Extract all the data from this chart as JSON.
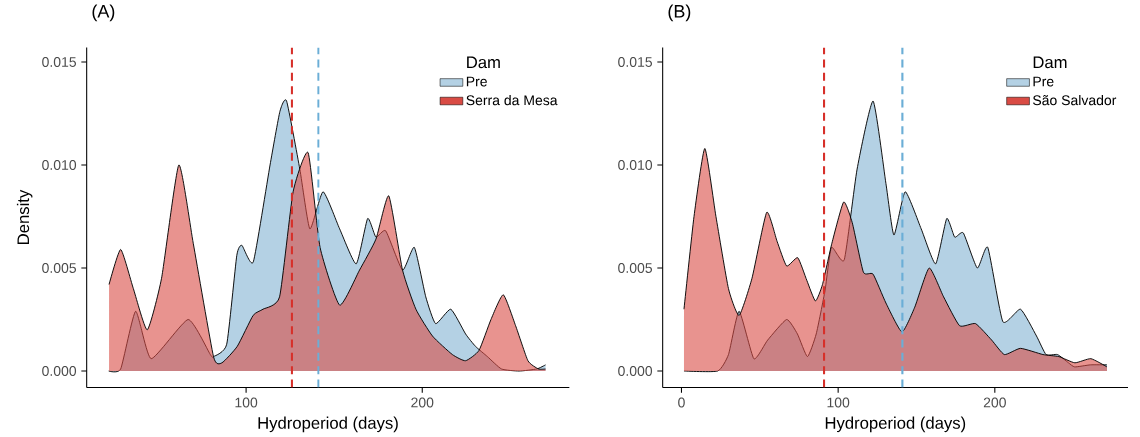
{
  "chart_data": [
    {
      "type": "area",
      "title": "(A)",
      "xlabel": "Hydroperiod (days)",
      "ylabel": "Density",
      "legend_title": "Dam",
      "legend": "top right",
      "xlim": [
        9.5,
        283.5
      ],
      "ylim": [
        -0.0008,
        0.0157
      ],
      "xticks": [
        100,
        200
      ],
      "yticks": [
        {
          "value": 0,
          "label": "0.000"
        },
        {
          "value": 0.005,
          "label": "0.005"
        },
        {
          "value": 0.01,
          "label": "0.010"
        },
        {
          "value": 0.015,
          "label": "0.015"
        }
      ],
      "series": [
        {
          "name": "Pre",
          "color": "#b4d1e4",
          "x": [
            22,
            28.8,
            37.3,
            46.1,
            67.1,
            79.7,
            81.5,
            89,
            94.7,
            97.6,
            104.1,
            113.6,
            119.2,
            123,
            130.5,
            136.2,
            143.7,
            153.1,
            162.5,
            169,
            173.7,
            179.3,
            188.8,
            195.5,
            202,
            207.6,
            216.2,
            224.6,
            230.2,
            237,
            245,
            255,
            265,
            270
          ],
          "values": [
            0,
            0.0001,
            0.0029,
            0.0006,
            0.0025,
            0.0008,
            0.0007,
            0.0013,
            0.0056,
            0.0061,
            0.0053,
            0.01,
            0.0126,
            0.0131,
            0.0098,
            0.0069,
            0.0087,
            0.0069,
            0.0052,
            0.0074,
            0.0065,
            0.0068,
            0.0049,
            0.006,
            0.0036,
            0.0023,
            0.003,
            0.0018,
            0.0012,
            0.0007,
            0.0001,
            0,
            0.0001,
            0.0003
          ]
        },
        {
          "name": "Serra da Mesa",
          "color": "#e8938f",
          "x": [
            22.2,
            28.8,
            36,
            43.9,
            52,
            61.8,
            70,
            81.5,
            86.3,
            95,
            104,
            109.6,
            119,
            126.7,
            135.2,
            142,
            153.1,
            164.4,
            173.7,
            181,
            188.8,
            196.4,
            205.8,
            217.1,
            224.6,
            232.2,
            239,
            246,
            253,
            260,
            266,
            270
          ],
          "values": [
            0.0042,
            0.0059,
            0.004,
            0.002,
            0.0045,
            0.01,
            0.0062,
            0.0007,
            0.0004,
            0.0012,
            0.0027,
            0.003,
            0.0036,
            0.0087,
            0.0106,
            0.006,
            0.0032,
            0.0049,
            0.0064,
            0.0085,
            0.0049,
            0.003,
            0.0017,
            0.0008,
            0.0005,
            0.001,
            0.0025,
            0.0037,
            0.0022,
            0.0005,
            0.0001,
            0.0001
          ]
        }
      ],
      "ref_lines": [
        {
          "axis": "x",
          "value": 126,
          "color": "#d7302a",
          "line_style": "dashed"
        },
        {
          "axis": "x",
          "value": 141,
          "color": "#6baed6",
          "line_style": "dashed"
        }
      ]
    },
    {
      "type": "area",
      "title": "(B)",
      "xlabel": "Hydroperiod (days)",
      "legend_title": "Dam",
      "legend": "top right",
      "xlim": [
        -12,
        285
      ],
      "ylim": [
        -0.0008,
        0.0157
      ],
      "xticks": [
        0,
        100,
        200
      ],
      "yticks": [
        {
          "value": 0,
          "label": "0.000"
        },
        {
          "value": 0.005,
          "label": "0.005"
        },
        {
          "value": 0.01,
          "label": "0.010"
        },
        {
          "value": 0.015,
          "label": "0.015"
        }
      ],
      "series": [
        {
          "name": "Pre",
          "color": "#b4d1e4",
          "x": [
            1.6,
            23.1,
            30,
            36.8,
            46.2,
            55,
            67.1,
            74,
            80.4,
            86,
            91.6,
            95.7,
            103.9,
            112.1,
            122.3,
            130.5,
            135.6,
            142.8,
            153,
            162.2,
            169.3,
            174.4,
            179.9,
            188.8,
            195.5,
            205.1,
            216.4,
            226.6,
            232.7,
            240,
            247,
            251,
            261,
            271.6
          ],
          "values": [
            0,
            0,
            0.0008,
            0.0029,
            0.0006,
            0.0015,
            0.0025,
            0.0018,
            0.0007,
            0.0018,
            0.0039,
            0.006,
            0.0054,
            0.0098,
            0.0131,
            0.0091,
            0.0066,
            0.0087,
            0.0069,
            0.0052,
            0.0074,
            0.0065,
            0.0067,
            0.005,
            0.006,
            0.0024,
            0.003,
            0.0017,
            0.0008,
            0.0008,
            0.0004,
            0.0002,
            0.0003,
            0.0003
          ]
        },
        {
          "name": "São Salvador",
          "color": "#e8938f",
          "x": [
            1.6,
            8,
            14.9,
            22,
            30,
            36.8,
            45,
            54.4,
            61,
            67.1,
            74.2,
            80,
            85.5,
            90,
            96,
            103.5,
            109,
            116.1,
            122.3,
            130.5,
            140.7,
            148.9,
            158.1,
            167.3,
            177.5,
            187.7,
            198,
            206.1,
            216.4,
            230.7,
            240.9,
            251.1,
            261.3,
            271.6
          ],
          "values": [
            0.003,
            0.0075,
            0.0108,
            0.0075,
            0.004,
            0.0027,
            0.0045,
            0.0077,
            0.0063,
            0.0051,
            0.0055,
            0.0044,
            0.0034,
            0.0042,
            0.0062,
            0.0082,
            0.0072,
            0.0048,
            0.0047,
            0.0033,
            0.0019,
            0.0031,
            0.005,
            0.0036,
            0.0022,
            0.0023,
            0.0015,
            0.0008,
            0.0011,
            0.0008,
            0.0007,
            0.0004,
            0.0006,
            0.0002
          ]
        }
      ],
      "ref_lines": [
        {
          "axis": "x",
          "value": 91,
          "color": "#d7302a",
          "line_style": "dashed"
        },
        {
          "axis": "x",
          "value": 141,
          "color": "#6baed6",
          "line_style": "dashed"
        }
      ]
    }
  ]
}
